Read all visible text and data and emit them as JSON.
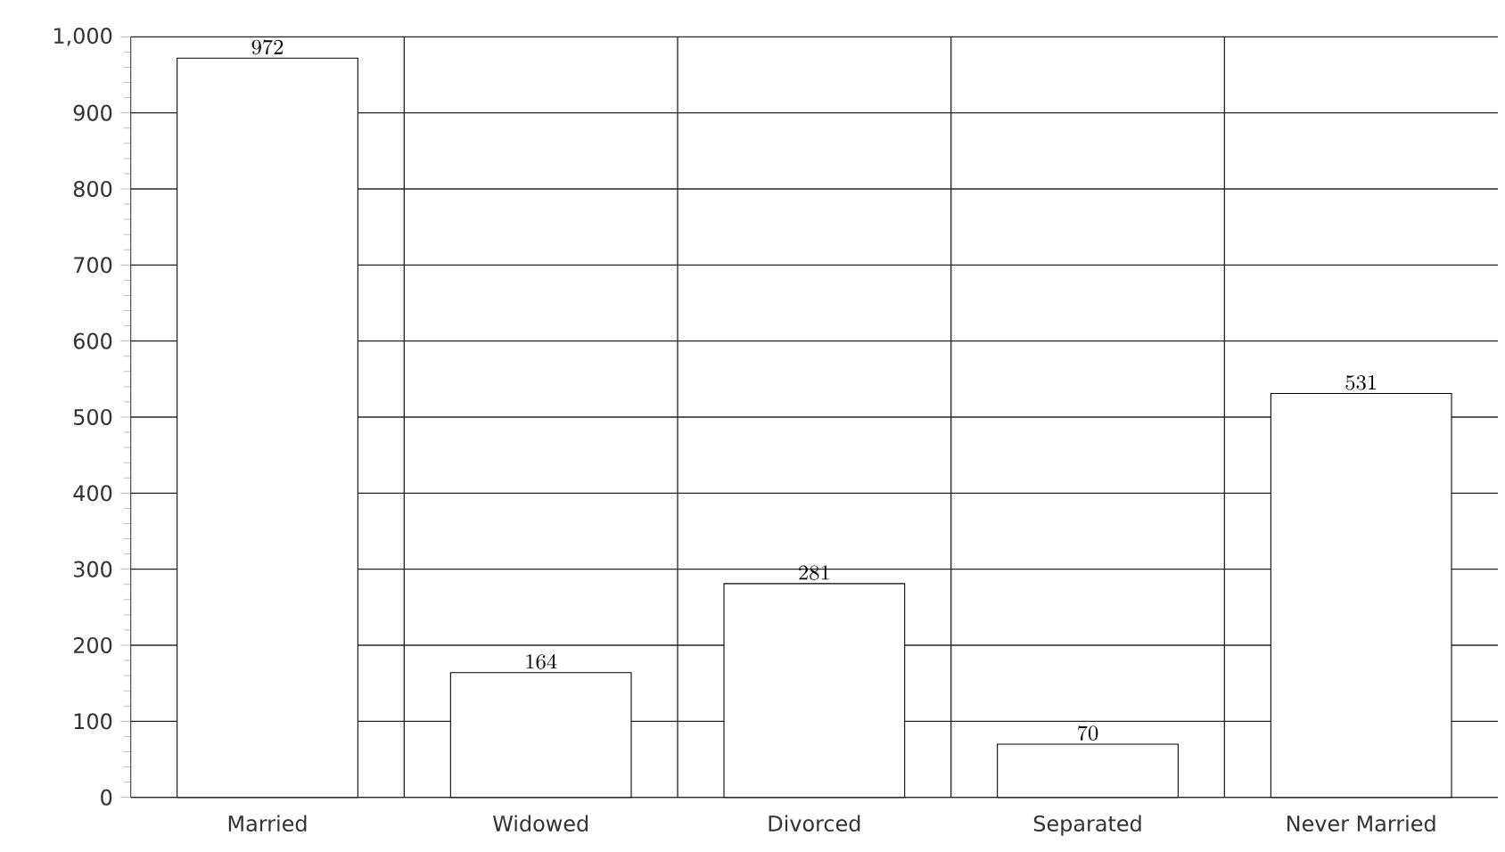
{
  "chart_data": {
    "type": "bar",
    "categories": [
      "Married",
      "Widowed",
      "Divorced",
      "Separated",
      "Never Married"
    ],
    "values": [
      972,
      164,
      281,
      70,
      531
    ],
    "color": "#ffffff",
    "data_labels": true,
    "grid": true,
    "ylim": [
      0,
      1000
    ],
    "yticks": [
      0,
      100,
      200,
      300,
      400,
      500,
      600,
      700,
      800,
      900,
      {
        "value": 1000,
        "label": "1,000"
      }
    ]
  }
}
